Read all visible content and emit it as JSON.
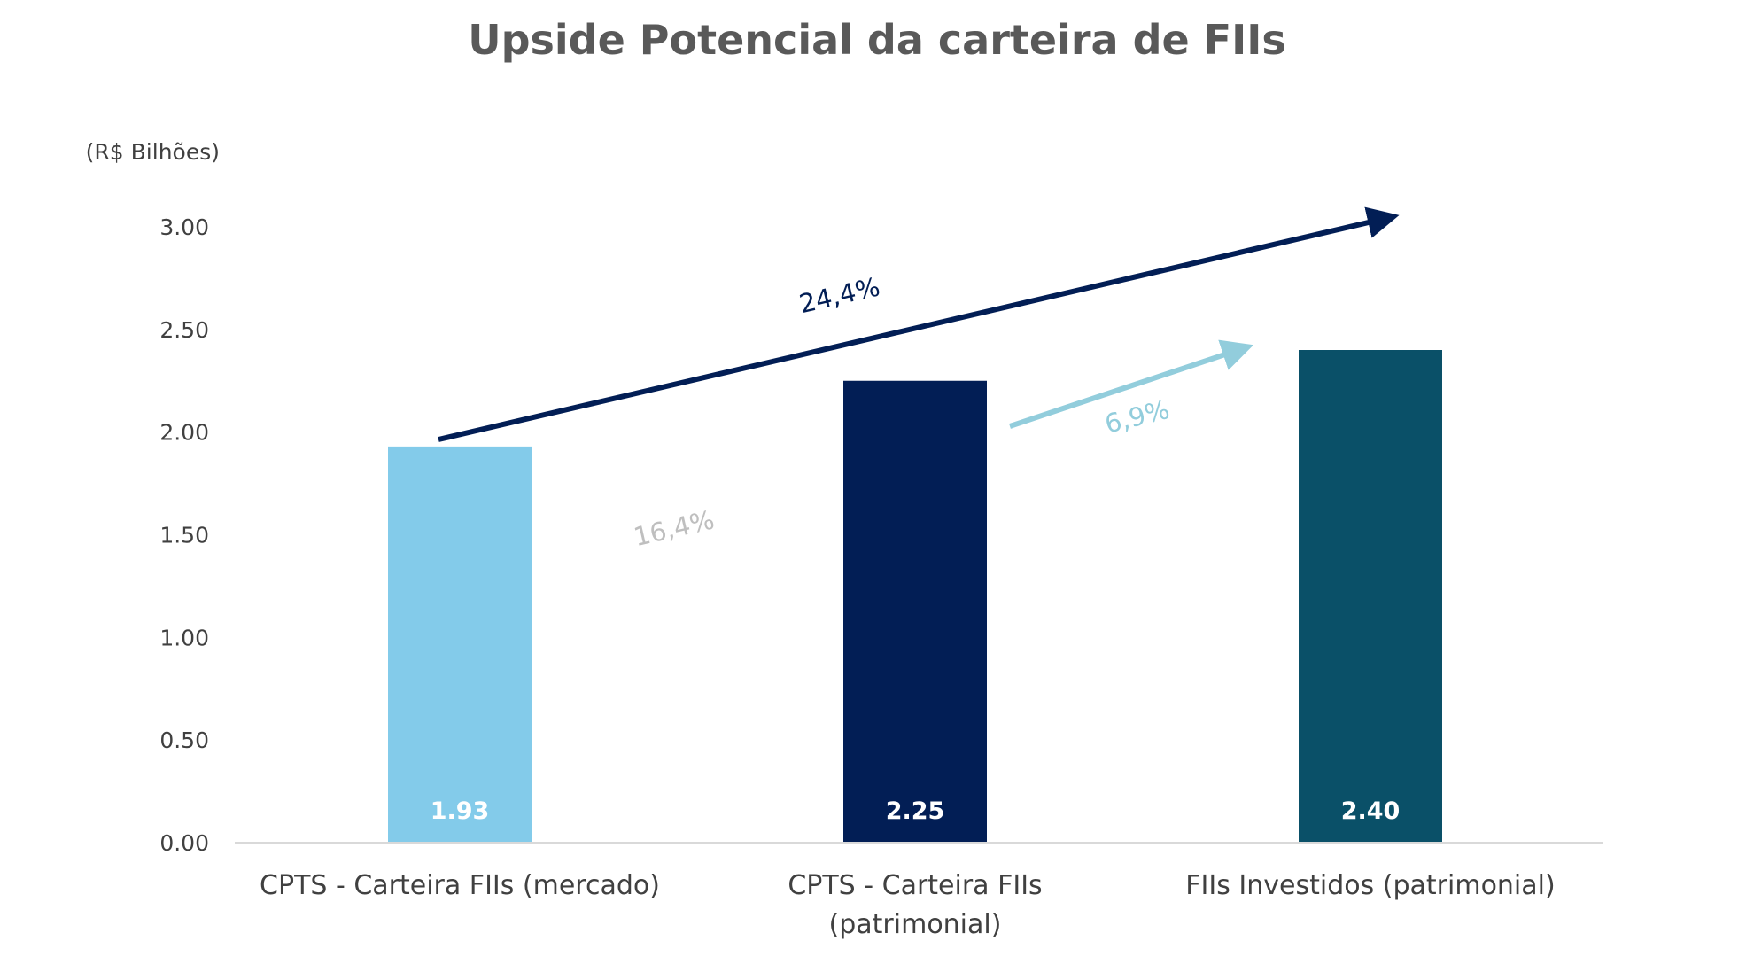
{
  "chart_data": {
    "type": "bar",
    "title": "Upside Potencial da carteira de FIIs",
    "unit_label": "(R$ Bilhões)",
    "categories": [
      [
        "CPTS - Carteira FIIs (mercado)"
      ],
      [
        "CPTS - Carteira FIIs",
        "(patrimonial)"
      ],
      [
        "FIIs Investidos (patrimonial)"
      ]
    ],
    "values": [
      1.93,
      2.25,
      2.4
    ],
    "data_labels": [
      "1.93",
      "2.25",
      "2.40"
    ],
    "bar_colors": [
      "#83CBEA",
      "#021E55",
      "#0A5068"
    ],
    "yticks": [
      "0.00",
      "0.50",
      "1.00",
      "1.50",
      "2.00",
      "2.50",
      "3.00"
    ],
    "ylim": [
      0,
      3.0
    ],
    "grid": false,
    "annotations": [
      {
        "text": "24,4%",
        "color": "#021E55",
        "arrow": true
      },
      {
        "text": "16,4%",
        "color": "#BFBFBF",
        "arrow": false
      },
      {
        "text": "6,9%",
        "color": "#92CDDC",
        "arrow": true
      }
    ]
  }
}
